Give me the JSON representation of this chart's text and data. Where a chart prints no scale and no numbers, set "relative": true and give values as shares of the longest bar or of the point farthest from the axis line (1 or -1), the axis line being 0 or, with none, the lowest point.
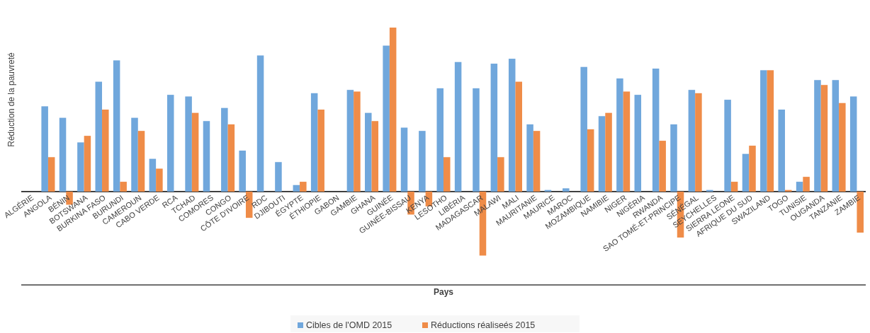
{
  "chart_data": {
    "type": "bar",
    "relative": true,
    "xlabel": "Pays",
    "ylabel": "Réduction de la pauvreté",
    "legend": "bottom",
    "categories": [
      "ALGÉRIE",
      "ANGOLA",
      "BÉNIN",
      "BOTSWANA",
      "BURKINA FASO",
      "BURUNDI",
      "CAMEROUN",
      "CABO VERDE",
      "RCA",
      "TCHAD",
      "COMORES",
      "CONGO",
      "CÔTE D'IVOIRE",
      "RDC",
      "DJIBOUTI",
      "ÉGYPTE",
      "ÉTHIOPIE",
      "GABON",
      "GAMBIE",
      "GHANA",
      "GUINÉE",
      "GUINÉE-BISSAU",
      "KENYA",
      "LESOTHO",
      "LIBÉRIA",
      "MADAGASCAR",
      "MALAWI",
      "MALI",
      "MAURITANIE",
      "MAURICE",
      "MAROC",
      "MOZAMBIQUE",
      "NAMIBIE",
      "NIGER",
      "NIGÉRIA",
      "RWANDA",
      "SAO TOMÉ-ET-PRINCIPE",
      "SÉNÉGAL",
      "SEYCHELLES",
      "SIERRA LEONE",
      "AFRIQUE DU SUD",
      "SWAZILAND",
      "TOGO",
      "TUNISIE",
      "OUGANDA",
      "TANZANIE",
      "ZAMBIE"
    ],
    "series": [
      {
        "name": "Cibles de l'OMD 2015",
        "color": "#70a7dc",
        "values": [
          null,
          0.52,
          0.45,
          0.3,
          0.67,
          0.8,
          0.45,
          0.2,
          0.59,
          0.58,
          0.43,
          0.51,
          0.25,
          0.83,
          0.18,
          0.04,
          0.6,
          null,
          0.62,
          0.48,
          0.89,
          0.39,
          0.37,
          0.63,
          0.79,
          0.63,
          0.78,
          0.81,
          0.41,
          0.01,
          0.02,
          0.76,
          0.46,
          0.69,
          0.59,
          0.75,
          0.41,
          0.62,
          0.01,
          0.56,
          0.23,
          0.74,
          0.5,
          0.06,
          0.68,
          0.68,
          0.58
        ]
      },
      {
        "name": "Réductions réaliseés 2015",
        "color": "#ef8c48",
        "values": [
          null,
          0.21,
          -0.08,
          0.34,
          0.5,
          0.06,
          0.37,
          0.14,
          null,
          0.48,
          null,
          0.41,
          -0.16,
          null,
          null,
          0.06,
          0.5,
          null,
          0.61,
          0.43,
          1,
          -0.14,
          -0.09,
          0.21,
          null,
          -0.39,
          0.21,
          0.67,
          0.37,
          null,
          null,
          0.38,
          0.48,
          0.61,
          null,
          0.31,
          -0.28,
          0.6,
          null,
          0.06,
          0.28,
          0.74,
          0.01,
          0.09,
          0.65,
          0.54,
          -0.25
        ]
      }
    ]
  }
}
